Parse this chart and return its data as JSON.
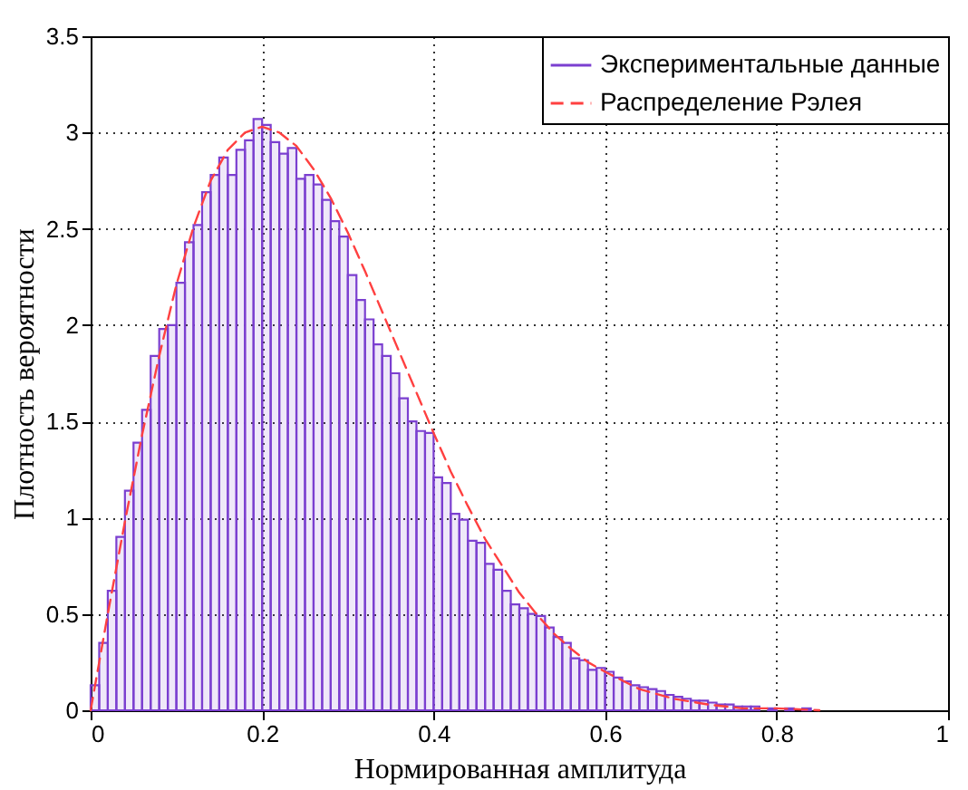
{
  "chart_data": {
    "type": "histogram",
    "xlabel": "Нормированная амплитуда",
    "ylabel": "Плотность вероятности",
    "bins": [
      0,
      0.01,
      0.02,
      0.03,
      0.04,
      0.05,
      0.06,
      0.07,
      0.08,
      0.09,
      0.1,
      0.11,
      0.12,
      0.13,
      0.14,
      0.15,
      0.16,
      0.17,
      0.18,
      0.19,
      0.2,
      0.21,
      0.22,
      0.23,
      0.24,
      0.25,
      0.26,
      0.27,
      0.28,
      0.29,
      0.3,
      0.31,
      0.32,
      0.33,
      0.34,
      0.35,
      0.36,
      0.37,
      0.38,
      0.39,
      0.4,
      0.41,
      0.42,
      0.43,
      0.44,
      0.45,
      0.46,
      0.47,
      0.48,
      0.49,
      0.5,
      0.51,
      0.52,
      0.53,
      0.54,
      0.55,
      0.56,
      0.57,
      0.58,
      0.59,
      0.6,
      0.61,
      0.62,
      0.63,
      0.64,
      0.65,
      0.66,
      0.67,
      0.68,
      0.69,
      0.7,
      0.71,
      0.72,
      0.73,
      0.74,
      0.75,
      0.76,
      0.77,
      0.78,
      0.79,
      0.8,
      0.81,
      0.82,
      0.83,
      0.84
    ],
    "series": [
      {
        "name": "Экспериментальные данные",
        "color": "#7b3fd0",
        "values": [
          0.13,
          0.35,
          0.62,
          0.9,
          1.14,
          1.39,
          1.56,
          1.84,
          1.98,
          2.0,
          2.22,
          2.43,
          2.52,
          2.69,
          2.78,
          2.87,
          2.78,
          2.91,
          2.96,
          3.07,
          3.04,
          2.95,
          2.89,
          2.92,
          2.76,
          2.78,
          2.73,
          2.65,
          2.54,
          2.46,
          2.26,
          2.13,
          2.03,
          1.9,
          1.84,
          1.75,
          1.62,
          1.5,
          1.45,
          1.44,
          1.21,
          1.18,
          1.02,
          0.99,
          0.88,
          0.87,
          0.76,
          0.73,
          0.62,
          0.55,
          0.53,
          0.5,
          0.49,
          0.43,
          0.38,
          0.35,
          0.27,
          0.26,
          0.21,
          0.22,
          0.2,
          0.17,
          0.15,
          0.13,
          0.12,
          0.11,
          0.1,
          0.08,
          0.07,
          0.06,
          0.05,
          0.05,
          0.04,
          0.03,
          0.03,
          0.02,
          0.02,
          0.02,
          null,
          0.01,
          null,
          0.01,
          null,
          0.01
        ]
      },
      {
        "name": "Распределение Рэлея",
        "type": "line",
        "color": "#ff4040",
        "line_style": "dashed",
        "x": [
          0,
          0.02,
          0.04,
          0.06,
          0.08,
          0.1,
          0.12,
          0.14,
          0.16,
          0.18,
          0.2,
          0.22,
          0.24,
          0.26,
          0.28,
          0.3,
          0.32,
          0.34,
          0.36,
          0.38,
          0.4,
          0.42,
          0.44,
          0.46,
          0.48,
          0.5,
          0.52,
          0.54,
          0.56,
          0.58,
          0.6,
          0.64,
          0.68,
          0.72,
          0.76,
          0.8,
          0.85
        ],
        "values": [
          0,
          0.5,
          0.98,
          1.43,
          1.84,
          2.21,
          2.51,
          2.75,
          2.91,
          3.0,
          3.03,
          3.0,
          2.93,
          2.81,
          2.66,
          2.48,
          2.28,
          2.07,
          1.86,
          1.65,
          1.44,
          1.24,
          1.06,
          0.89,
          0.75,
          0.61,
          0.5,
          0.4,
          0.32,
          0.25,
          0.2,
          0.11,
          0.06,
          0.03,
          0.01,
          0.01,
          0
        ]
      }
    ],
    "xlim": [
      0,
      1
    ],
    "xticks": [
      0,
      0.2,
      0.4,
      0.6,
      0.8,
      1
    ],
    "ylim": [
      0,
      3.5
    ],
    "yticks": [
      0,
      0.5,
      1,
      1.5,
      2,
      2.5,
      3,
      3.5
    ],
    "grid": true,
    "legend": "top right"
  }
}
